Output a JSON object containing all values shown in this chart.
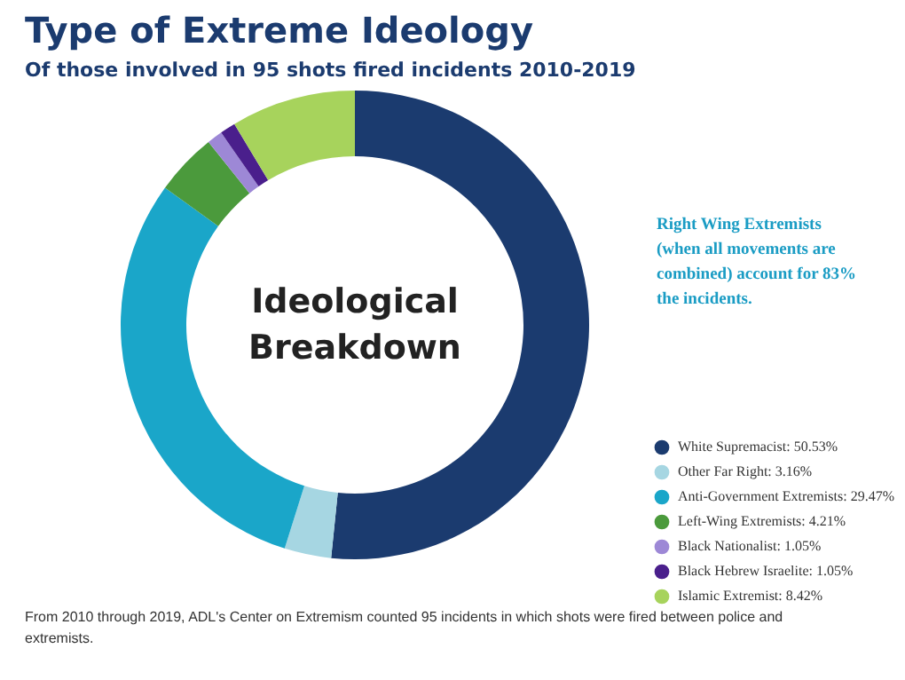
{
  "chart_data": {
    "type": "donut",
    "title": "Type of Extreme Ideology",
    "subtitle": "Of those involved in 95 shots fired incidents 2010-2019",
    "categories": [
      "White Supremacist: 50.53%",
      "Other Far Right: 3.16%",
      "Anti-Government Extremists: 29.47%",
      "Left-Wing Extremists: 4.21%",
      "Black Nationalist: 1.05%",
      "Black Hebrew Israelite: 1.05%",
      "Islamic Extremist: 8.42%"
    ],
    "values": [
      50.53,
      3.16,
      29.47,
      4.21,
      1.05,
      1.05,
      8.42
    ],
    "colors": [
      "#1b3b6f",
      "#a6d6e2",
      "#1aa6c9",
      "#4b9a3c",
      "#9d88d6",
      "#4a1f8c",
      "#a7d35c"
    ],
    "legend": "right",
    "annotations": [
      "Ideological Breakdown",
      "Right Wing Extremists (when all movements are combined) account for 83% the incidents.",
      "From 2010 through 2019, ADL's Center on Extremism counted 95 incidents in which shots were fired between police and extremists."
    ]
  }
}
